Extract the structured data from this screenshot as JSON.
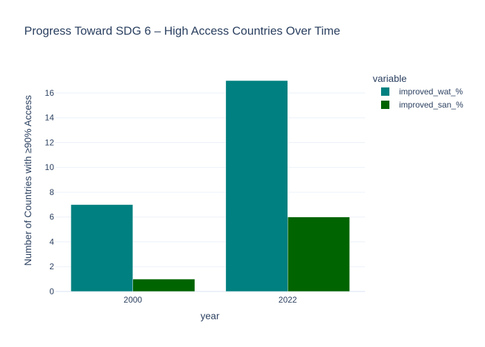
{
  "chart_data": {
    "type": "bar",
    "title": "Progress Toward SDG 6 – High Access Countries Over Time",
    "xlabel": "year",
    "ylabel": "Number of Countries with ≥90% Access",
    "categories": [
      "2000",
      "2022"
    ],
    "series": [
      {
        "name": "improved_wat_%",
        "values": [
          7,
          17
        ],
        "color": "#008080"
      },
      {
        "name": "improved_san_%",
        "values": [
          1,
          6
        ],
        "color": "#006400"
      }
    ],
    "ylim": [
      0,
      17.9
    ],
    "yticks": [
      0,
      2,
      4,
      6,
      8,
      10,
      12,
      14,
      16
    ],
    "grid": true,
    "legend": {
      "title": "variable",
      "position": "top-right"
    },
    "barmode": "group"
  }
}
